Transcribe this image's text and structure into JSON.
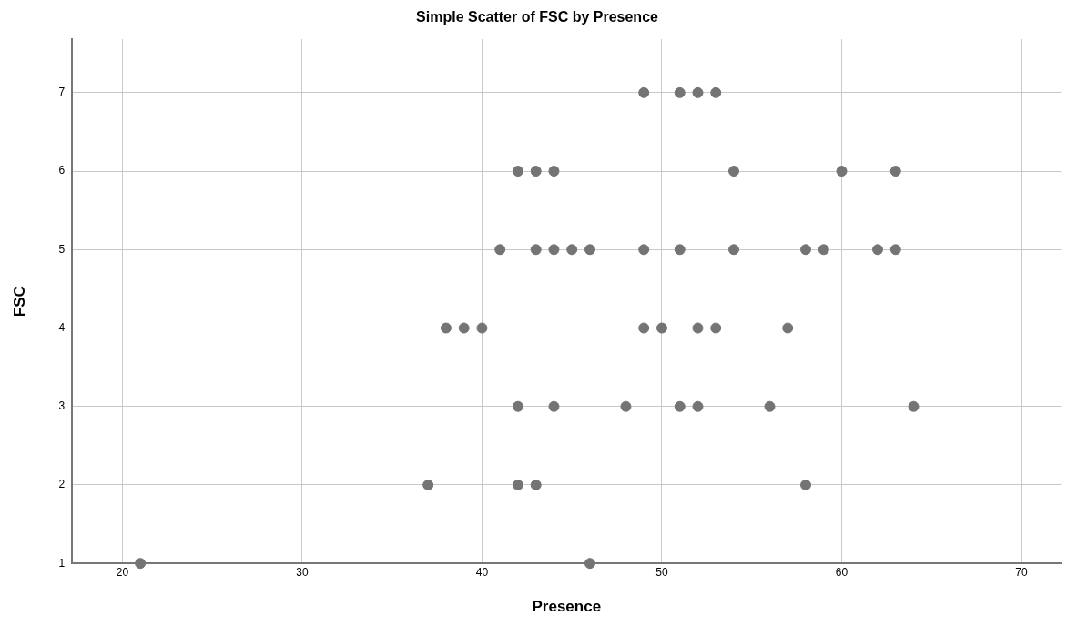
{
  "chart_data": {
    "type": "scatter",
    "title": "Simple Scatter of FSC by Presence",
    "xlabel": "Presence",
    "ylabel": "FSC",
    "x": [
      49,
      51,
      52,
      53,
      42,
      43,
      44,
      54,
      60,
      63,
      41,
      43,
      44,
      45,
      46,
      49,
      51,
      54,
      58,
      59,
      62,
      63,
      38,
      39,
      40,
      49,
      50,
      52,
      53,
      57,
      42,
      44,
      48,
      51,
      52,
      56,
      64,
      37,
      42,
      43,
      58,
      21,
      46
    ],
    "values": [
      7,
      7,
      7,
      7,
      6,
      6,
      6,
      6,
      6,
      6,
      5,
      5,
      5,
      5,
      5,
      5,
      5,
      5,
      5,
      5,
      5,
      5,
      4,
      4,
      4,
      4,
      4,
      4,
      4,
      4,
      3,
      3,
      3,
      3,
      3,
      3,
      3,
      2,
      2,
      2,
      2,
      1,
      1
    ],
    "color": "#747474",
    "xlim": [
      17.2,
      72.2
    ],
    "xticks": [
      20,
      30,
      40,
      50,
      60,
      70
    ],
    "ylim": [
      1,
      7.68
    ],
    "yticks": [
      1,
      2,
      3,
      4,
      5,
      6,
      7
    ],
    "grid": true,
    "marker": "circle",
    "legend": false
  }
}
